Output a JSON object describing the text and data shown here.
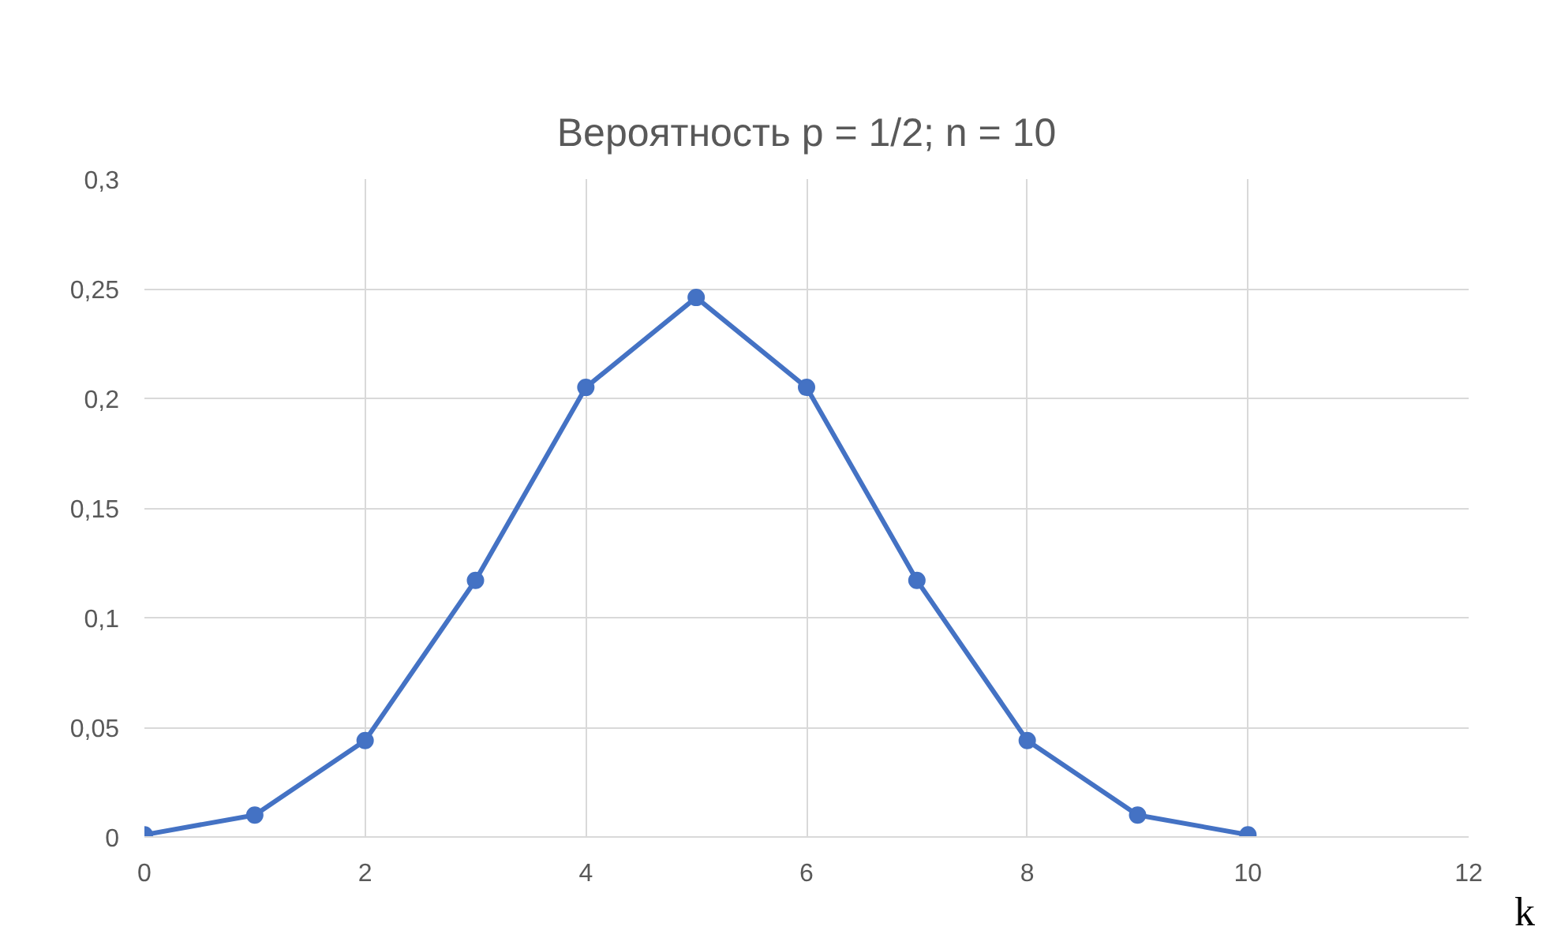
{
  "chart_data": {
    "type": "line",
    "title": "Вероятность p = 1/2; n = 10",
    "xlabel": "k",
    "x": [
      0,
      1,
      2,
      3,
      4,
      5,
      6,
      7,
      8,
      9,
      10
    ],
    "series": [
      {
        "color": "#4472c4",
        "values": [
          0.001,
          0.01,
          0.044,
          0.117,
          0.205,
          0.246,
          0.205,
          0.117,
          0.044,
          0.01,
          0.001
        ]
      }
    ],
    "xlim": [
      0,
      12
    ],
    "xticks": [
      0,
      2,
      4,
      6,
      8,
      10,
      12
    ],
    "ylim": [
      0,
      0.3
    ],
    "yticks": [
      0,
      {
        "value": 0.05,
        "label": "0,05"
      },
      {
        "value": 0.1,
        "label": "0,1"
      },
      {
        "value": 0.15,
        "label": "0,15"
      },
      {
        "value": 0.2,
        "label": "0,2"
      },
      {
        "value": 0.25,
        "label": "0,25"
      },
      {
        "value": 0.3,
        "label": "0,3"
      }
    ],
    "grid": true,
    "marker": "circle",
    "line_style": "solid"
  }
}
